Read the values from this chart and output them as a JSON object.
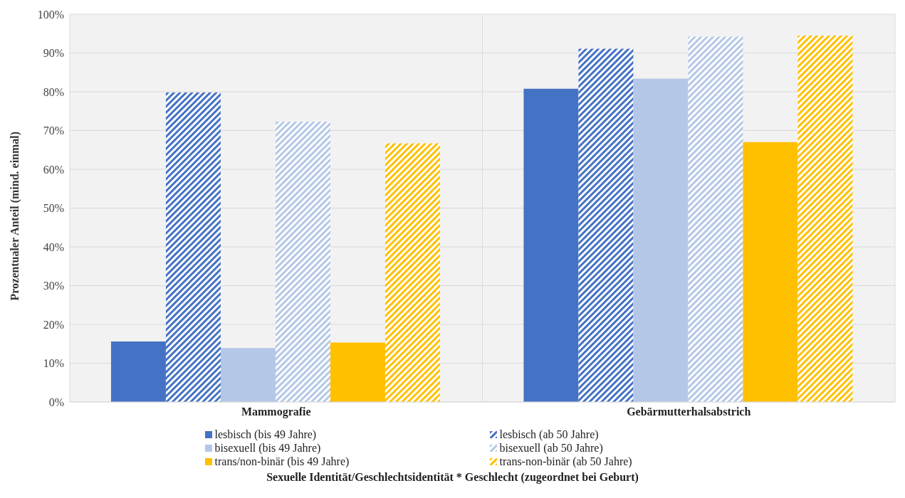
{
  "chart_data": {
    "type": "bar",
    "categories": [
      "Mammografie",
      "Gebärmutterhalsabstrich"
    ],
    "series": [
      {
        "name": "lesbisch (bis 49 Jahre)",
        "color": "#4472c4",
        "values": [
          15.6,
          80.8
        ]
      },
      {
        "name": "lesbisch (ab 50 Jahre)",
        "color": "#4472c4",
        "values": [
          79.8,
          91.1
        ]
      },
      {
        "name": "bisexuell (bis 49 Jahre)",
        "color": "#b4c7e7",
        "values": [
          13.9,
          83.4
        ]
      },
      {
        "name": "bisexuell (ab 50 Jahre)",
        "color": "#b4c7e7",
        "values": [
          72.3,
          94.2
        ]
      },
      {
        "name": "trans/non-binär (bis 49 Jahre)",
        "color": "#ffc000",
        "values": [
          15.3,
          67.0
        ]
      },
      {
        "name": "trans-non-binär (ab 50 Jahre)",
        "color": "#ffc000",
        "values": [
          66.7,
          94.5
        ]
      }
    ],
    "xlabel": "Sexuelle Identität/Geschlechtsidentität * Geschlecht (zugeordnet bei Geburt)",
    "ylabel": "Prozentualer Anteil (mind. einmal)",
    "ylim": [
      0,
      100
    ],
    "yticks": [
      {
        "value": 0,
        "label": "0%"
      },
      {
        "value": 10,
        "label": "10%"
      },
      {
        "value": 20,
        "label": "20%"
      },
      {
        "value": 30,
        "label": "30%"
      },
      {
        "value": 40,
        "label": "40%"
      },
      {
        "value": 50,
        "label": "50%"
      },
      {
        "value": 60,
        "label": "60%"
      },
      {
        "value": 70,
        "label": "70%"
      },
      {
        "value": 80,
        "label": "80%"
      },
      {
        "value": 90,
        "label": "90%"
      },
      {
        "value": 100,
        "label": "100%"
      }
    ],
    "grid": true,
    "legend": "bottom"
  }
}
